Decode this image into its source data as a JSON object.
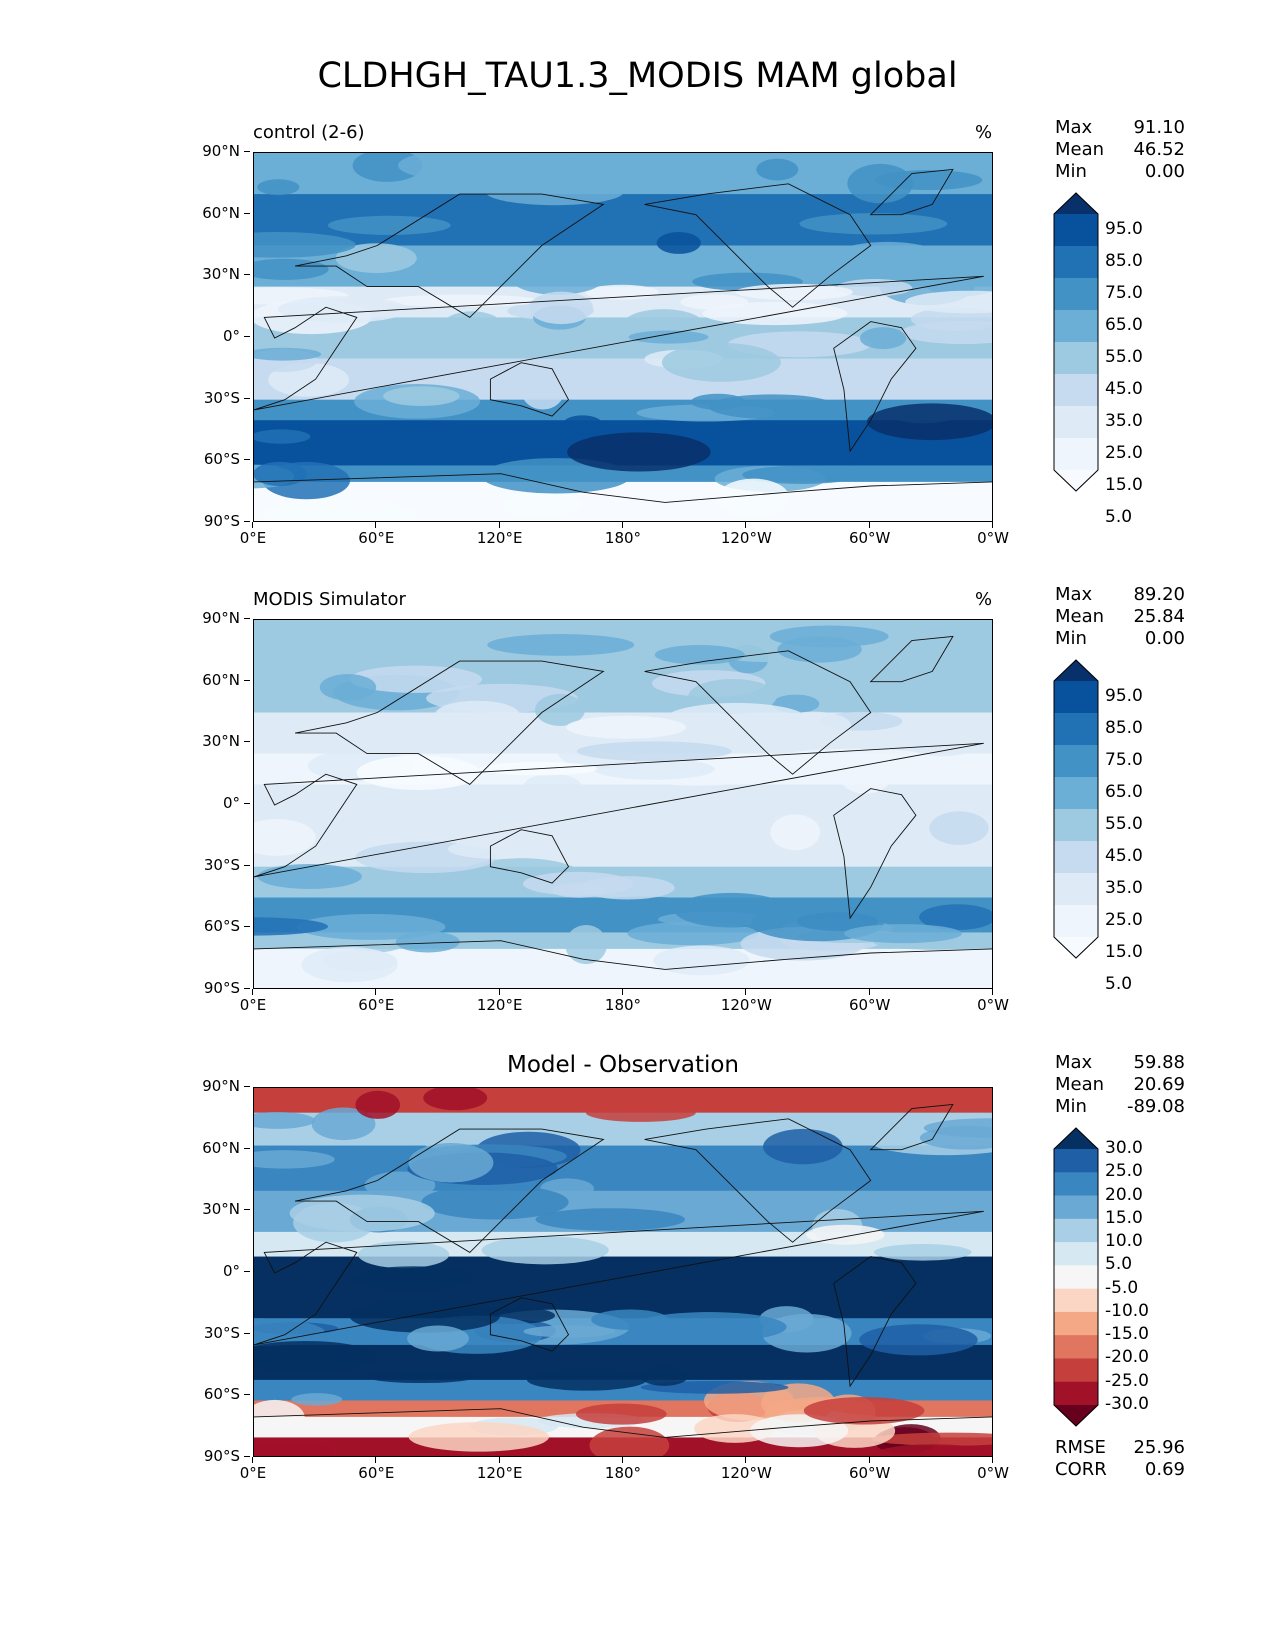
{
  "title": "CLDHGH_TAU1.3_MODIS MAM global",
  "chart_data": [
    {
      "type": "heatmap",
      "subtitle_left": "control (2-6)",
      "subtitle_right": "%",
      "stats": {
        "max_label": "Max",
        "max": "91.10",
        "mean_label": "Mean",
        "mean": "46.52",
        "min_label": "Min",
        "min": "0.00"
      },
      "colorbar": {
        "levels": [
          "95.0",
          "85.0",
          "75.0",
          "65.0",
          "55.0",
          "45.0",
          "35.0",
          "25.0",
          "15.0",
          "5.0"
        ],
        "colors": [
          "#08306b",
          "#08519c",
          "#2171b5",
          "#4292c6",
          "#6baed6",
          "#9ecae1",
          "#c6dbef",
          "#deebf7",
          "#eef5fc",
          "#f7fbff"
        ]
      },
      "xticks": [
        "0°E",
        "60°E",
        "120°E",
        "180°",
        "120°W",
        "60°W",
        "0°W"
      ],
      "yticks": [
        "90°N",
        "60°N",
        "30°N",
        "0°",
        "30°S",
        "60°S",
        "90°S"
      ]
    },
    {
      "type": "heatmap",
      "subtitle_left": "MODIS Simulator",
      "subtitle_right": "%",
      "stats": {
        "max_label": "Max",
        "max": "89.20",
        "mean_label": "Mean",
        "mean": "25.84",
        "min_label": "Min",
        "min": "0.00"
      },
      "colorbar": {
        "levels": [
          "95.0",
          "85.0",
          "75.0",
          "65.0",
          "55.0",
          "45.0",
          "35.0",
          "25.0",
          "15.0",
          "5.0"
        ],
        "colors": [
          "#08306b",
          "#08519c",
          "#2171b5",
          "#4292c6",
          "#6baed6",
          "#9ecae1",
          "#c6dbef",
          "#deebf7",
          "#eef5fc",
          "#f7fbff"
        ]
      },
      "xticks": [
        "0°E",
        "60°E",
        "120°E",
        "180°",
        "120°W",
        "60°W",
        "0°W"
      ],
      "yticks": [
        "90°N",
        "60°N",
        "30°N",
        "0°",
        "30°S",
        "60°S",
        "90°S"
      ]
    },
    {
      "type": "heatmap",
      "subtitle_center": "Model - Observation",
      "stats": {
        "max_label": "Max",
        "max": "59.88",
        "mean_label": "Mean",
        "mean": "20.69",
        "min_label": "Min",
        "min": "-89.08"
      },
      "colorbar": {
        "levels": [
          "30.0",
          "25.0",
          "20.0",
          "15.0",
          "10.0",
          "5.0",
          "-5.0",
          "-10.0",
          "-15.0",
          "-20.0",
          "-25.0",
          "-30.0"
        ],
        "colors": [
          "#053061",
          "#1f5fa6",
          "#3a86c0",
          "#6aa9d3",
          "#a8cfe5",
          "#d6e8f2",
          "#f6f6f6",
          "#fbd6c4",
          "#f4a886",
          "#e07660",
          "#c5403c",
          "#a11128",
          "#67001f"
        ]
      },
      "bottom_stats": {
        "rmse_label": "RMSE",
        "rmse": "25.96",
        "corr_label": "CORR",
        "corr": "0.69"
      },
      "xticks": [
        "0°E",
        "60°E",
        "120°E",
        "180°",
        "120°W",
        "60°W",
        "0°W"
      ],
      "yticks": [
        "90°N",
        "60°N",
        "30°N",
        "0°",
        "30°S",
        "60°S",
        "90°S"
      ]
    }
  ]
}
